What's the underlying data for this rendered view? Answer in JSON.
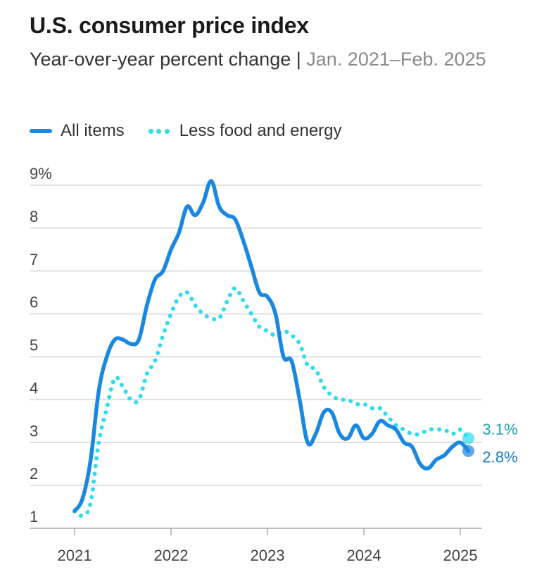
{
  "title": "U.S. consumer price index",
  "subtitle": {
    "main": "Year-over-year percent change",
    "separator": " | ",
    "range": "Jan. 2021–Feb. 2025"
  },
  "colors": {
    "all_items": "#1a88e0",
    "core": "#2edcf0",
    "all_items_label": "#1a7ec8",
    "core_label": "#1ba3b4",
    "grid": "#d9d9d9",
    "axis": "#aaaaaa"
  },
  "chart_data": {
    "type": "line",
    "title": "U.S. consumer price index",
    "subtitle": "Year-over-year percent change | Jan. 2021–Feb. 2025",
    "xlabel": "",
    "ylabel": "",
    "x_ticks": [
      "2021",
      "2022",
      "2023",
      "2024",
      "2025"
    ],
    "y_ticks": [
      "1",
      "2",
      "3",
      "4",
      "5",
      "6",
      "7",
      "8",
      "9%"
    ],
    "ylim": [
      1,
      9
    ],
    "grid": true,
    "legend_position": "top-left",
    "x": [
      "2021-01",
      "2021-02",
      "2021-03",
      "2021-04",
      "2021-05",
      "2021-06",
      "2021-07",
      "2021-08",
      "2021-09",
      "2021-10",
      "2021-11",
      "2021-12",
      "2022-01",
      "2022-02",
      "2022-03",
      "2022-04",
      "2022-05",
      "2022-06",
      "2022-07",
      "2022-08",
      "2022-09",
      "2022-10",
      "2022-11",
      "2022-12",
      "2023-01",
      "2023-02",
      "2023-03",
      "2023-04",
      "2023-05",
      "2023-06",
      "2023-07",
      "2023-08",
      "2023-09",
      "2023-10",
      "2023-11",
      "2023-12",
      "2024-01",
      "2024-02",
      "2024-03",
      "2024-04",
      "2024-05",
      "2024-06",
      "2024-07",
      "2024-08",
      "2024-09",
      "2024-10",
      "2024-11",
      "2024-12",
      "2025-01",
      "2025-02"
    ],
    "series": [
      {
        "name": "All items",
        "style": "solid",
        "values": [
          1.4,
          1.7,
          2.6,
          4.2,
          5.0,
          5.4,
          5.4,
          5.3,
          5.4,
          6.2,
          6.8,
          7.0,
          7.5,
          7.9,
          8.5,
          8.3,
          8.6,
          9.1,
          8.5,
          8.3,
          8.2,
          7.7,
          7.1,
          6.5,
          6.4,
          6.0,
          5.0,
          4.9,
          4.0,
          3.0,
          3.2,
          3.7,
          3.7,
          3.2,
          3.1,
          3.4,
          3.1,
          3.2,
          3.5,
          3.4,
          3.3,
          3.0,
          2.9,
          2.5,
          2.4,
          2.6,
          2.7,
          2.9,
          3.0,
          2.8
        ],
        "end_label": "2.8%"
      },
      {
        "name": "Less food and energy",
        "style": "dotted",
        "values": [
          1.4,
          1.3,
          1.6,
          3.0,
          3.8,
          4.5,
          4.3,
          4.0,
          4.0,
          4.6,
          4.9,
          5.5,
          6.0,
          6.4,
          6.5,
          6.2,
          6.0,
          5.9,
          5.9,
          6.3,
          6.6,
          6.3,
          6.0,
          5.7,
          5.6,
          5.5,
          5.6,
          5.5,
          5.3,
          4.8,
          4.7,
          4.3,
          4.1,
          4.0,
          4.0,
          3.9,
          3.9,
          3.8,
          3.8,
          3.6,
          3.4,
          3.3,
          3.2,
          3.2,
          3.3,
          3.3,
          3.3,
          3.2,
          3.3,
          3.1
        ],
        "end_label": "3.1%"
      }
    ]
  }
}
